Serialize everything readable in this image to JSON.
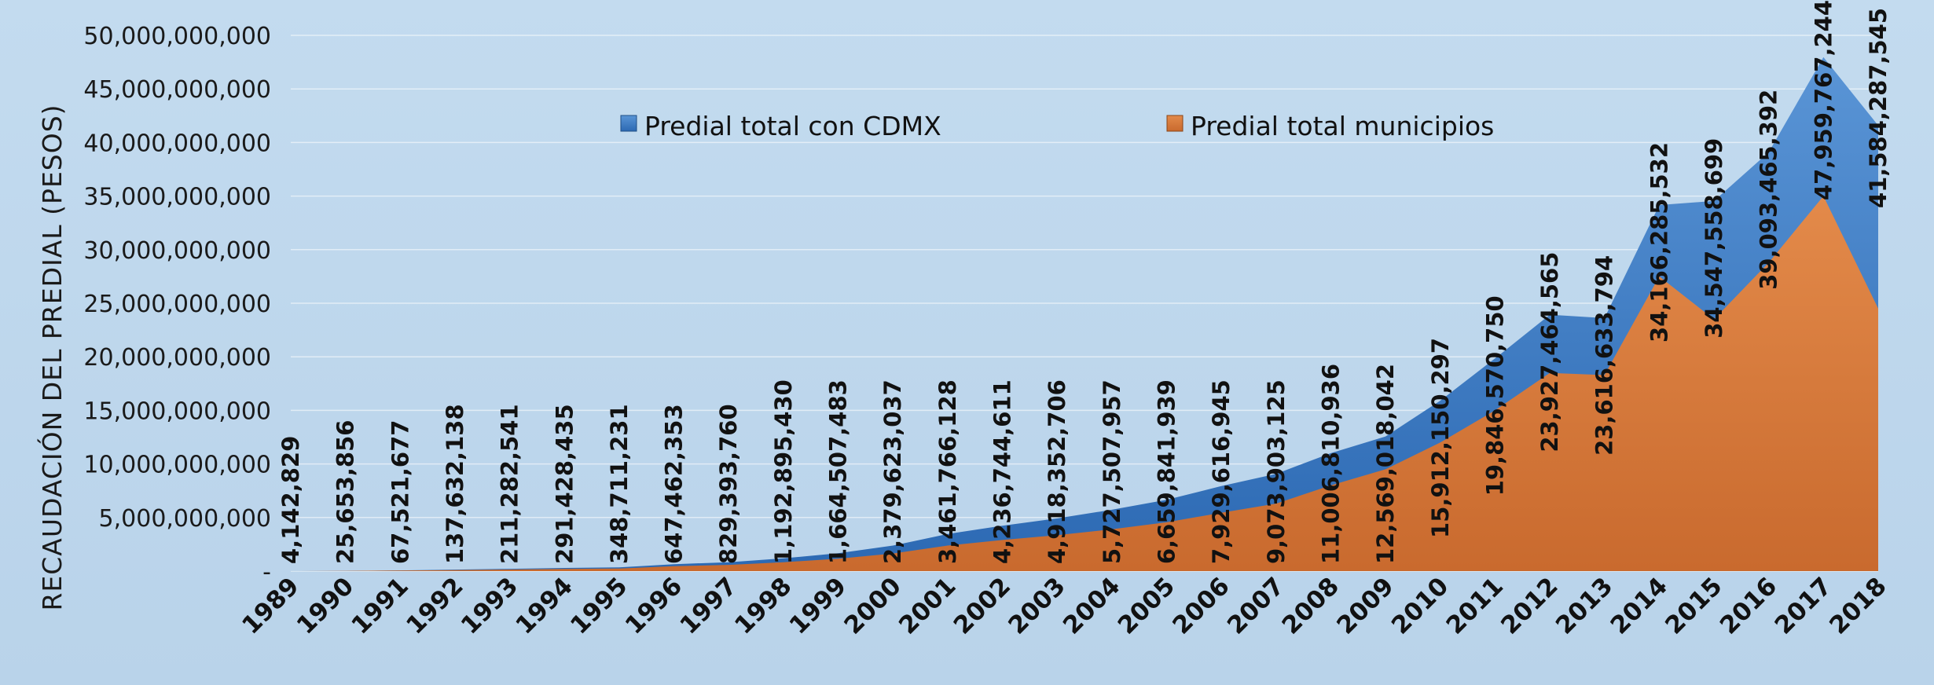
{
  "chart_data": {
    "type": "area",
    "ylabel": "RECAUDACIÓN DEL PREDIAL (PESOS)",
    "xlabel": "",
    "ylim": [
      0,
      50000000000
    ],
    "y_ticks": [
      "-",
      "5,000,000,000",
      "10,000,000,000",
      "15,000,000,000",
      "20,000,000,000",
      "25,000,000,000",
      "30,000,000,000",
      "35,000,000,000",
      "40,000,000,000",
      "45,000,000,000",
      "50,000,000,000"
    ],
    "grid": true,
    "legend_position": "top",
    "categories": [
      "1989",
      "1990",
      "1991",
      "1992",
      "1993",
      "1994",
      "1995",
      "1996",
      "1997",
      "1998",
      "1999",
      "2000",
      "2001",
      "2002",
      "2003",
      "2004",
      "2005",
      "2006",
      "2007",
      "2008",
      "2009",
      "2010",
      "2011",
      "2012",
      "2013",
      "2014",
      "2015",
      "2016",
      "2017",
      "2018"
    ],
    "series": [
      {
        "name": "Predial total con CDMX",
        "color": "#3c7bc4",
        "values": [
          4142829,
          25653856,
          67521677,
          137632138,
          211282541,
          291428435,
          348711231,
          647462353,
          829393760,
          1192895430,
          1664507483,
          2379623037,
          3461766128,
          4236744611,
          4918352706,
          5727507957,
          6659841939,
          7929616945,
          9073903125,
          11006810936,
          12569018042,
          15912150297,
          19846570750,
          23927464565,
          23616633794,
          34166285532,
          34547558699,
          39093465392,
          47959767244,
          41584287545
        ],
        "labels": [
          "4,142,829",
          "25,653,856",
          "67,521,677",
          "137,632,138",
          "211,282,541",
          "291,428,435",
          "348,711,231",
          "647,462,353",
          "829,393,760",
          "1,192,895,430",
          "1,664,507,483",
          "2,379,623,037",
          "3,461,766,128",
          "4,236,744,611",
          "4,918,352,706",
          "5,727,507,957",
          "6,659,841,939",
          "7,929,616,945",
          "9,073,903,125",
          "11,006,810,936",
          "12,569,018,042",
          "15,912,150,297",
          "19,846,570,750",
          "23,927,464,565",
          "23,616,633,794",
          "34,166,285,532",
          "34,547,558,699",
          "39,093,465,392",
          "47,959,767,244",
          "41,584,287,545"
        ]
      },
      {
        "name": "Predial total municipios",
        "color": "#d9773a",
        "values": [
          3000000,
          18000000,
          48000000,
          98000000,
          150000000,
          205000000,
          245000000,
          455000000,
          580000000,
          830000000,
          1150000000,
          1640000000,
          2380000000,
          2900000000,
          3350000000,
          3900000000,
          4550000000,
          5450000000,
          6300000000,
          8000000000,
          9500000000,
          12000000000,
          15000000000,
          18500000000,
          18300000000,
          27500000000,
          23500000000,
          28800000000,
          35000000000,
          24500000000
        ]
      }
    ]
  }
}
